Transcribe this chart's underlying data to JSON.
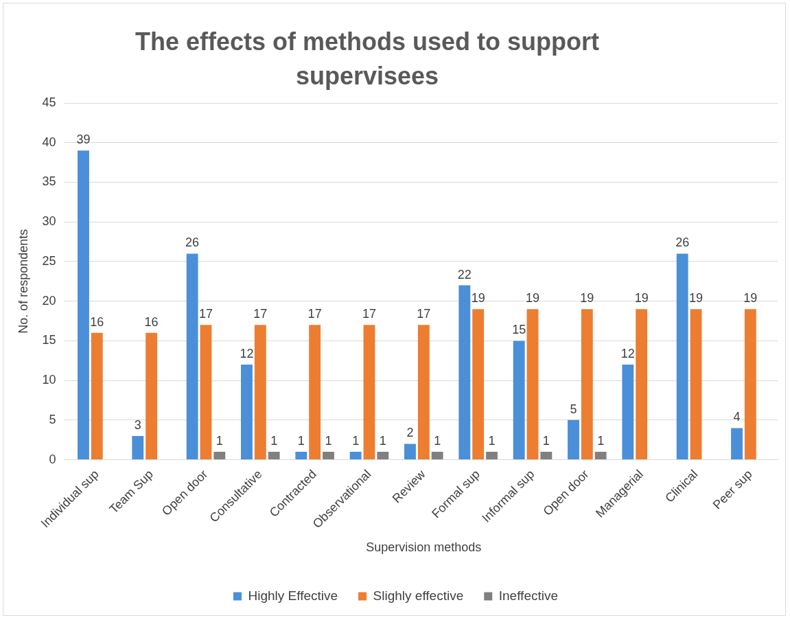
{
  "chart_data": {
    "type": "bar",
    "title": "The effects of methods used to support supervisees",
    "xlabel": "Supervision methods",
    "ylabel": "No. of respondents",
    "categories": [
      "Individual sup",
      "Team Sup",
      "Open door",
      "Consultative",
      "Contracted",
      "Observational",
      "Review",
      "Formal sup",
      "Informal sup",
      "Open door",
      "Managerial",
      "Clinical",
      "Peer sup"
    ],
    "series": [
      {
        "name": "Highly Effective",
        "color": "#4a8fd8",
        "values": [
          39,
          3,
          26,
          12,
          1,
          1,
          2,
          22,
          15,
          5,
          12,
          26,
          4
        ]
      },
      {
        "name": "Slighly effective",
        "color": "#ed7d31",
        "values": [
          16,
          16,
          17,
          17,
          17,
          17,
          17,
          19,
          19,
          19,
          19,
          19,
          19
        ]
      },
      {
        "name": "Ineffective",
        "color": "#808080",
        "values": [
          null,
          null,
          1,
          1,
          1,
          1,
          1,
          1,
          1,
          1,
          null,
          null,
          null
        ]
      }
    ],
    "ylim": [
      0,
      45
    ],
    "yticks": [
      0,
      5,
      10,
      15,
      20,
      25,
      30,
      35,
      40,
      45
    ],
    "grid": "y",
    "legend": "bottom",
    "data_labels": true
  }
}
